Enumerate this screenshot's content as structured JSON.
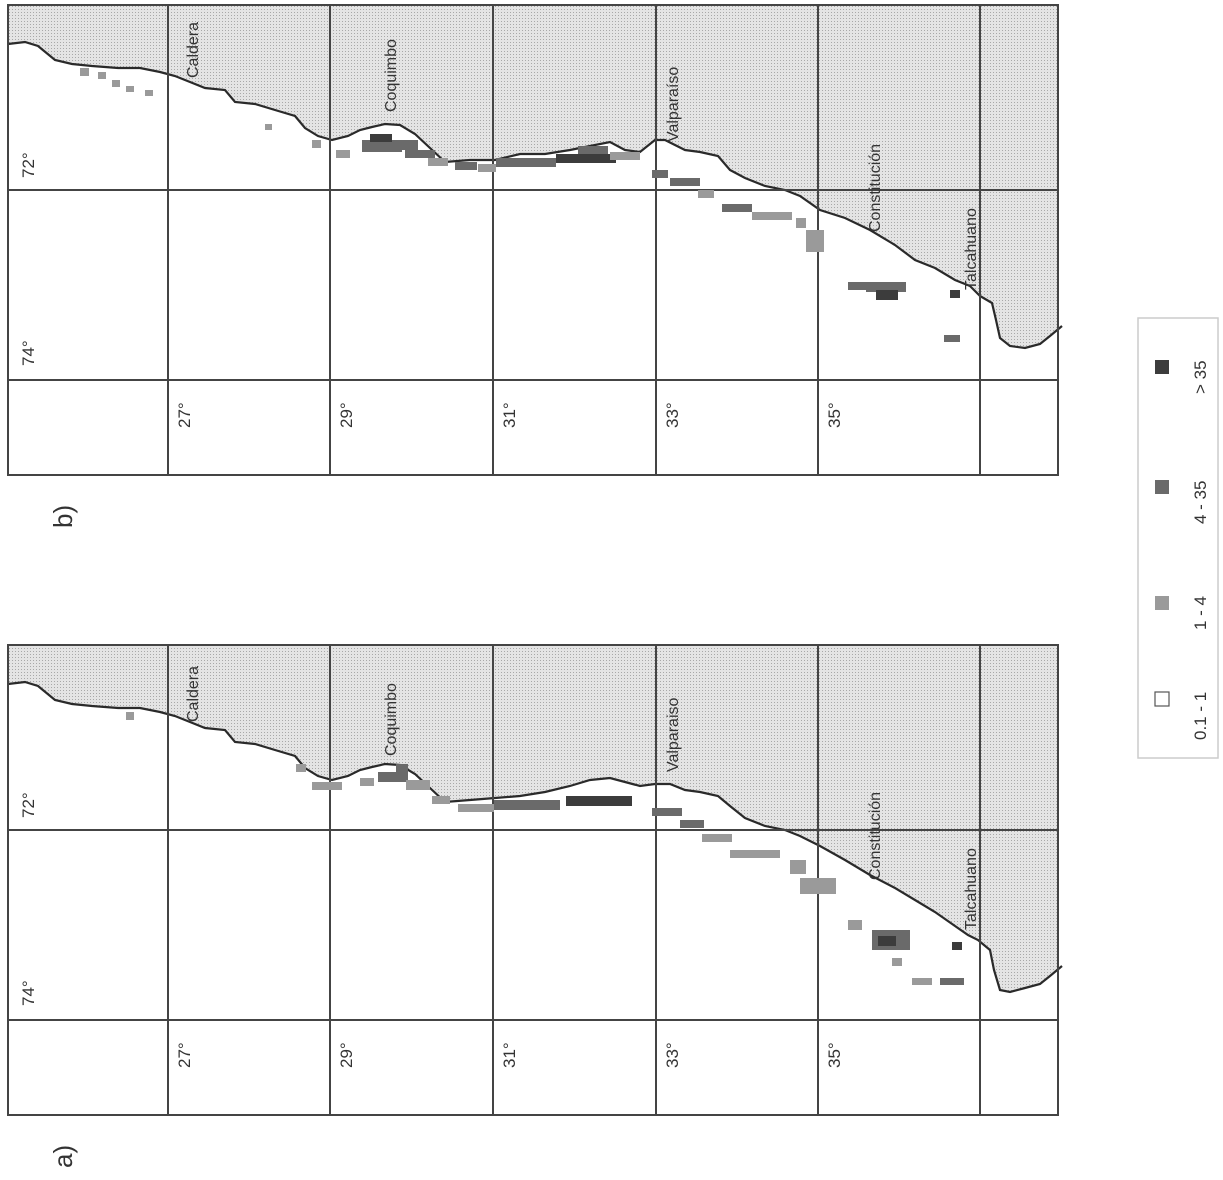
{
  "panels": [
    {
      "id": "a",
      "label": "a)",
      "lon_labels": [
        "74°",
        "72°"
      ],
      "lat_labels": [
        "27°",
        "29°",
        "31°",
        "33°",
        "35°"
      ],
      "places": [
        "Caldera",
        "Coquimbo",
        "Valparaiso",
        "Constitución",
        "Talcahuano"
      ]
    },
    {
      "id": "b",
      "label": "b)",
      "lon_labels": [
        "74°",
        "72°"
      ],
      "lat_labels": [
        "27°",
        "29°",
        "31°",
        "33°",
        "35°"
      ],
      "places": [
        "Caldera",
        "Coquimbo",
        "Valparaíso",
        "Constitución",
        "Talcahuano"
      ]
    }
  ],
  "legend": {
    "items": [
      {
        "label": "0.1 - 1",
        "color": "#ffffff"
      },
      {
        "label": "1 - 4",
        "color": "#9a9a9a"
      },
      {
        "label": "4 - 35",
        "color": "#6a6a6a"
      },
      {
        "label": "> 35",
        "color": "#3c3c3c"
      }
    ]
  },
  "colors": {
    "land": "#dedede",
    "coast": "#2a2a2a",
    "grid": "#444444"
  }
}
